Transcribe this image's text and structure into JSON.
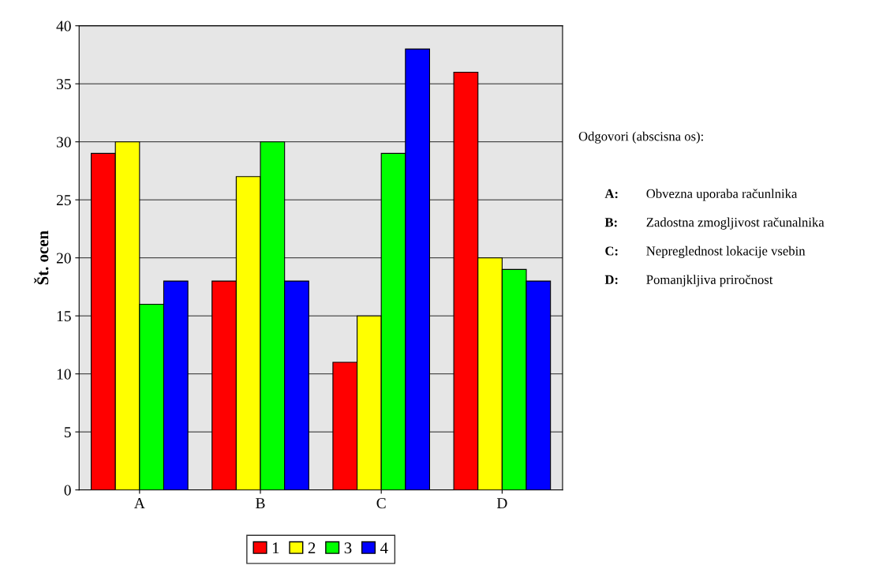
{
  "chart_data": {
    "type": "bar",
    "ylabel": "Št. ocen",
    "categories": [
      "A",
      "B",
      "C",
      "D"
    ],
    "series": [
      {
        "name": "1",
        "color": "#ff0000",
        "values": [
          29,
          18,
          11,
          36
        ]
      },
      {
        "name": "2",
        "color": "#ffff00",
        "values": [
          30,
          27,
          15,
          20
        ]
      },
      {
        "name": "3",
        "color": "#00ff00",
        "values": [
          16,
          30,
          29,
          19
        ]
      },
      {
        "name": "4",
        "color": "#0000ff",
        "values": [
          18,
          18,
          38,
          18
        ]
      }
    ],
    "ylim": [
      0,
      40
    ],
    "yticks": [
      0,
      5,
      10,
      15,
      20,
      25,
      30,
      35,
      40
    ],
    "grid": "y",
    "legend": "bottom",
    "annotations": [
      "Odgovori (abscisna os):",
      "A: Obvezna uporaba računlnika",
      "B: Zadostna zmogljivost računalnika",
      "C: Nepreglednost lokacije vsebin",
      "D: Pomanjkljiva priročnost"
    ]
  }
}
